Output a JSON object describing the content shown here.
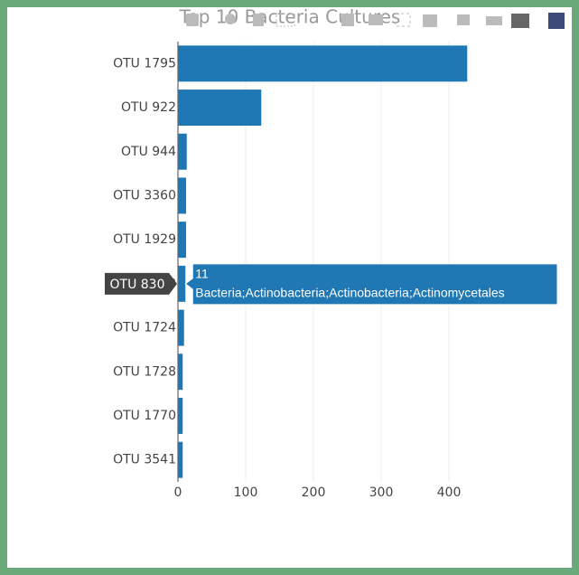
{
  "chart_data": {
    "type": "bar",
    "orientation": "horizontal",
    "title": "Top 10 Bacteria Cultures",
    "categories": [
      "OTU 1795",
      "OTU 922",
      "OTU 944",
      "OTU 3360",
      "OTU 1929",
      "OTU 830",
      "OTU 1724",
      "OTU 1728",
      "OTU 1770",
      "OTU 3541"
    ],
    "values": [
      427,
      123,
      13,
      12,
      12,
      11,
      9,
      7,
      7,
      7
    ],
    "color": "#1f77b4",
    "xlim": [
      0,
      480
    ],
    "xticks": [
      0,
      100,
      200,
      300,
      400
    ],
    "grid": true,
    "hover": {
      "index": 5,
      "text": "Bacteria;Actinobacteria;Actinobacteria;Actinomycetales"
    }
  }
}
